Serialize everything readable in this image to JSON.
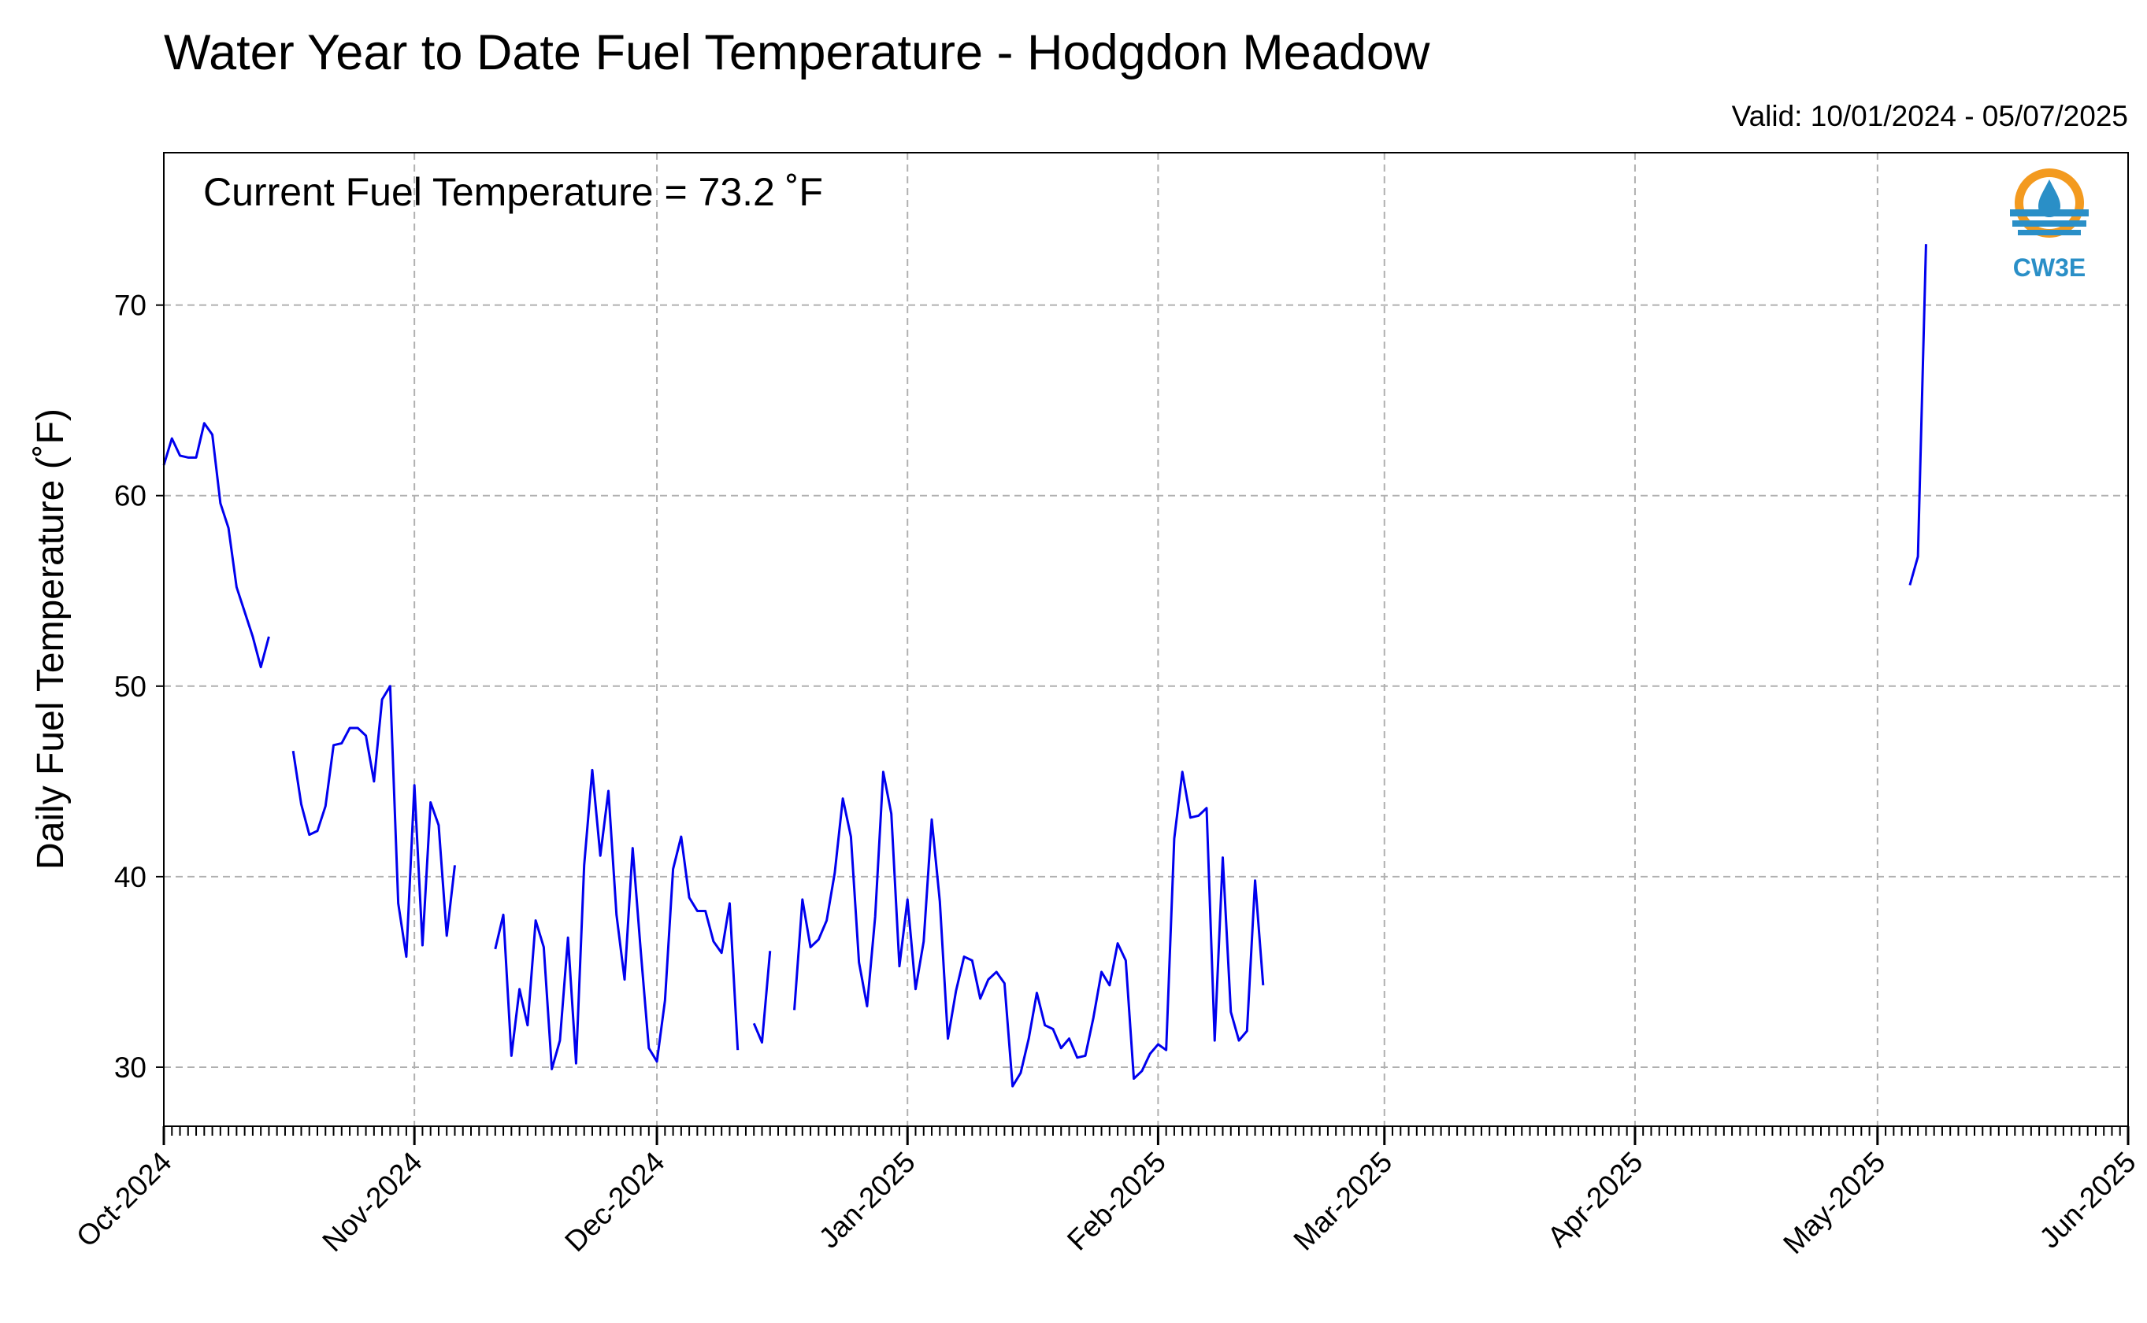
{
  "title": "Water Year to Date Fuel Temperature - Hodgdon Meadow",
  "valid_text": "Valid: 10/01/2024 - 05/07/2025",
  "annotation": "Current Fuel Temperature = 73.2  ˚F",
  "logo_text": "CW3E",
  "colors": {
    "line": "#0000ee",
    "grid": "#b0b0b0",
    "logo_orange": "#f39a1f",
    "logo_blue": "#2a8fc7"
  },
  "chart_data": {
    "type": "line",
    "title": "Water Year to Date Fuel Temperature - Hodgdon Meadow",
    "xlabel": "",
    "ylabel": "Daily Fuel Temperature (˚F)",
    "x_ticks": [
      "Oct-2024",
      "Nov-2024",
      "Dec-2024",
      "Jan-2025",
      "Feb-2025",
      "Mar-2025",
      "Apr-2025",
      "May-2025",
      "Jun-2025"
    ],
    "xlim": [
      "2024-10-01",
      "2025-06-01"
    ],
    "y_ticks": [
      30,
      40,
      50,
      60,
      70
    ],
    "ylim": [
      26.9,
      78.0
    ],
    "grid": true,
    "series": [
      {
        "x_start": "2024-10-01",
        "values": [
          61.6,
          63.0,
          62.1,
          62.0,
          62.0,
          63.8,
          63.2,
          59.6,
          58.3,
          55.2,
          53.9,
          52.6,
          51.0,
          52.6,
          null,
          null,
          46.6,
          43.8,
          42.2,
          42.4,
          43.7,
          46.9,
          47.0,
          47.8,
          47.8,
          47.4,
          45.0,
          49.3,
          50.0,
          38.6,
          35.8,
          44.8,
          36.4,
          43.9,
          42.7,
          36.9,
          40.6,
          null,
          null,
          null,
          null,
          36.2,
          38.0,
          30.6,
          34.1,
          32.2,
          37.7,
          36.3,
          29.9,
          31.4,
          36.8,
          30.2,
          40.6,
          45.6,
          41.1,
          44.5,
          38.0,
          34.6,
          41.5,
          36.1,
          31.0,
          30.3,
          33.5,
          40.4,
          42.1,
          38.9,
          38.2,
          38.2,
          36.6,
          36.0,
          38.6,
          30.9,
          null,
          32.3,
          31.3,
          36.1,
          null,
          null,
          33.0,
          38.8,
          36.3,
          36.7,
          37.7,
          40.2,
          44.1,
          42.1,
          35.5,
          33.2,
          37.9,
          45.5,
          43.3,
          35.3,
          38.8,
          34.1,
          36.6,
          43.0,
          38.7,
          31.5,
          34.0,
          35.8,
          35.6,
          33.6,
          34.6,
          35.0,
          34.4,
          29.0,
          29.7,
          31.5,
          33.9,
          32.2,
          32.0,
          31.0,
          31.5,
          30.5,
          30.6,
          32.6,
          35.0,
          34.3,
          36.5,
          35.6,
          29.4,
          29.8,
          30.7,
          31.2,
          30.9,
          42.0,
          45.5,
          43.1,
          43.2,
          43.6,
          31.4,
          41.0,
          32.9,
          31.4,
          31.9,
          39.8,
          34.3
        ]
      },
      {
        "x_start": "2025-05-05",
        "values": [
          55.3,
          56.8,
          73.2
        ]
      }
    ]
  }
}
